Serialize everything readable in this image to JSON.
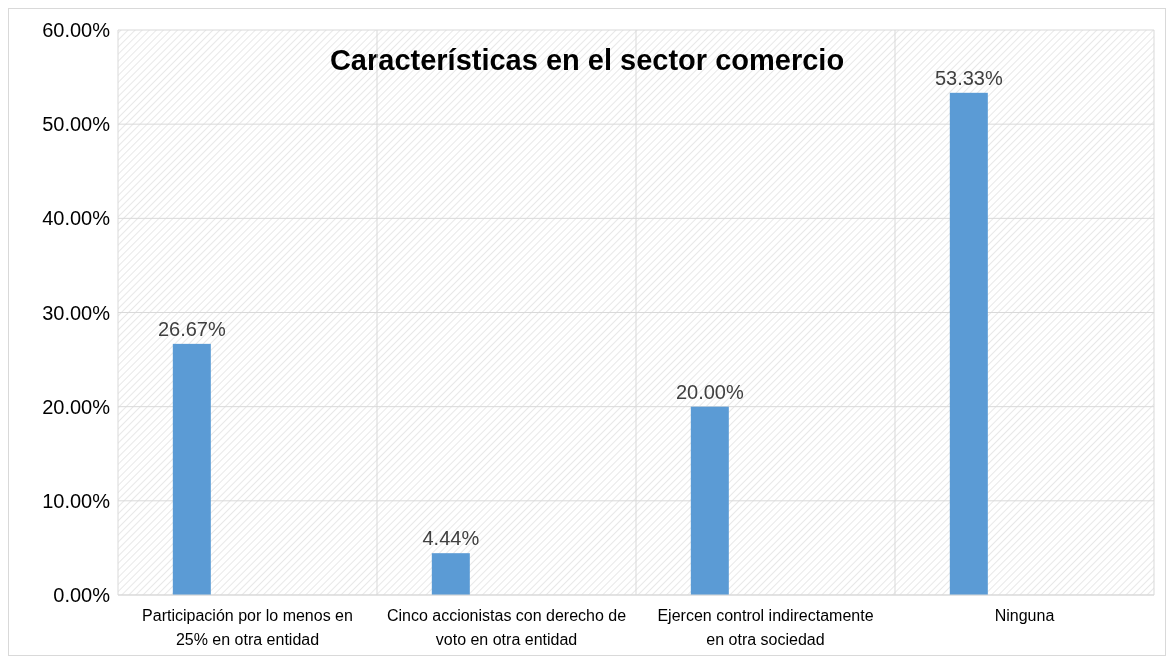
{
  "chart_data": {
    "type": "bar",
    "title": "Características en el sector comercio",
    "categories": [
      "Participación por lo menos en 25% en otra entidad",
      "Cinco accionistas con derecho de voto en otra entidad",
      "Ejercen control indirectamente en otra sociedad",
      "Ninguna"
    ],
    "values": [
      26.67,
      4.44,
      20.0,
      53.33
    ],
    "color": "#5b9bd5",
    "value_labels": [
      "26.67%",
      "4.44%",
      "20.00%",
      "53.33%"
    ],
    "ylim": [
      0,
      60
    ],
    "yticks": [
      {
        "value": 0,
        "label": "0.00%"
      },
      {
        "value": 10,
        "label": "10.00%"
      },
      {
        "value": 20,
        "label": "20.00%"
      },
      {
        "value": 30,
        "label": "30.00%"
      },
      {
        "value": 40,
        "label": "40.00%"
      },
      {
        "value": 50,
        "label": "50.00%"
      },
      {
        "value": 60,
        "label": "60.00%"
      }
    ],
    "grid": true
  }
}
